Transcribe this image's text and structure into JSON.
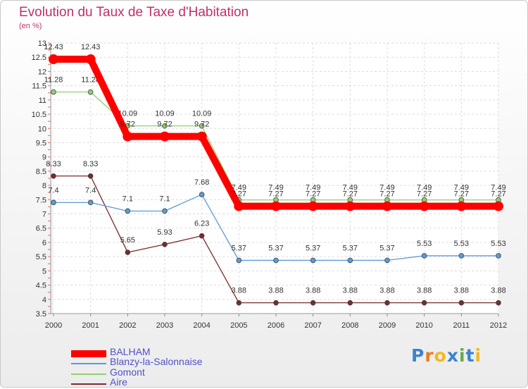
{
  "title": "Evolution du Taux de Taxe d'Habitation",
  "subtitle": "(en %)",
  "logo": {
    "text": "Proxiti",
    "letters": [
      "P",
      "r",
      "o",
      "x",
      "i",
      "t",
      "i"
    ],
    "colors": [
      "#3c82d2",
      "#ee7a20",
      "#f2b820",
      "#3c82d2",
      "#6aa84f",
      "#3c82d2",
      "#f2b820"
    ]
  },
  "chart_data": {
    "type": "line",
    "x": [
      "2000",
      "2001",
      "2002",
      "2003",
      "2004",
      "2005",
      "2006",
      "2007",
      "2008",
      "2009",
      "2010",
      "2011",
      "2012"
    ],
    "ylim": [
      3.5,
      13
    ],
    "yticks": [
      "3.5",
      "4",
      "4.5",
      "5",
      "5.5",
      "6",
      "6.5",
      "7",
      "7.5",
      "8",
      "8.5",
      "9",
      "9.5",
      "10",
      "10.5",
      "11",
      "11.5",
      "12",
      "12.5",
      "13"
    ],
    "grid": true,
    "legend_position": "bottom-left",
    "series": [
      {
        "name": "BALHAM",
        "color": "#ff0000",
        "values": [
          12.43,
          12.43,
          9.72,
          9.72,
          9.72,
          7.27,
          7.27,
          7.27,
          7.27,
          7.27,
          7.27,
          7.27,
          7.27
        ],
        "labels": [
          "12.43",
          "12.43",
          "9.72",
          "9.72",
          "9.72",
          "7.27",
          "7.27",
          "7.27",
          "7.27",
          "7.27",
          "7.27",
          "7.27",
          "7.27"
        ]
      },
      {
        "name": "Blanzy-la-Salonnaise",
        "color": "#5b9bd5",
        "values": [
          7.4,
          7.4,
          7.1,
          7.1,
          7.68,
          5.37,
          5.37,
          5.37,
          5.37,
          5.37,
          5.53,
          5.53,
          5.53
        ],
        "labels": [
          "7.4",
          "7.4",
          "7.1",
          "7.1",
          "7.68",
          "5.37",
          "5.37",
          "5.37",
          "5.37",
          "5.37",
          "5.53",
          "5.53",
          "5.53"
        ]
      },
      {
        "name": "Gomont",
        "color": "#90d070",
        "values": [
          11.28,
          11.28,
          10.09,
          10.09,
          10.09,
          7.49,
          7.49,
          7.49,
          7.49,
          7.49,
          7.49,
          7.49,
          7.49
        ],
        "labels": [
          "11.28",
          "11.28",
          "10.09",
          "10.09",
          "10.09",
          "7.49",
          "7.49",
          "7.49",
          "7.49",
          "7.49",
          "7.49",
          "7.49",
          "7.49"
        ]
      },
      {
        "name": "Aire",
        "color": "#7a2a2a",
        "values": [
          8.33,
          8.33,
          5.65,
          5.93,
          6.23,
          3.88,
          3.88,
          3.88,
          3.88,
          3.88,
          3.88,
          3.88,
          3.88
        ],
        "labels": [
          "8.33",
          "8.33",
          "5.65",
          "5.93",
          "6.23",
          "3.88",
          "3.88",
          "3.88",
          "3.88",
          "3.88",
          "3.88",
          "3.88",
          "3.88"
        ]
      }
    ]
  }
}
